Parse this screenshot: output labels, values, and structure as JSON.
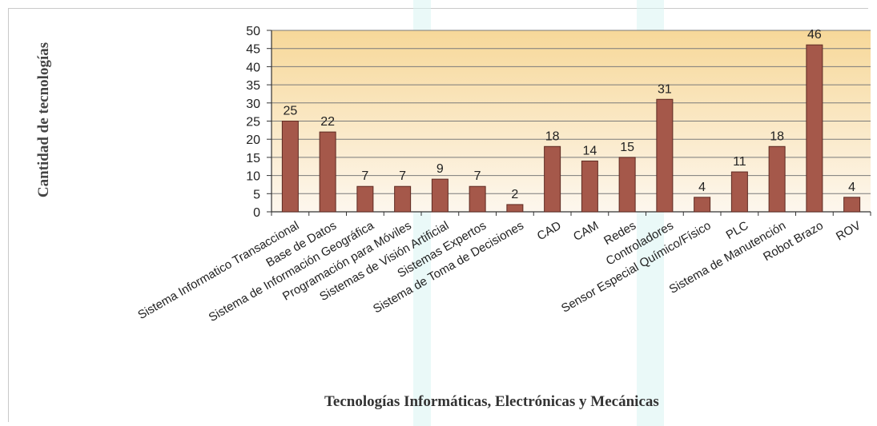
{
  "chart_data": {
    "type": "bar",
    "title": "",
    "ylabel": "Cantidad de tecnologías",
    "xlabel": "Tecnologías Informáticas, Electrónicas y Mecánicas",
    "ylim": [
      0,
      50
    ],
    "yticks": [
      0,
      5,
      10,
      15,
      20,
      25,
      30,
      35,
      40,
      45,
      50
    ],
    "grid": true,
    "legend": "none",
    "categories": [
      "Sistema Informatico Transaccional",
      "Base de Datos",
      "Sistema de Información Geográfica",
      "Programación para Móviles",
      "Sistemas de Visión Artificial",
      "Sistemas Expertos",
      "Sistema de Toma de Decisiones",
      "CAD",
      "CAM",
      "Redes",
      "Controladores",
      "Sensor Especial Químico/Físico",
      "PLC",
      "Sistema de Manutención",
      "Robot Brazo",
      "ROV"
    ],
    "values": [
      25,
      22,
      7,
      7,
      9,
      7,
      2,
      18,
      14,
      15,
      31,
      4,
      11,
      18,
      46,
      4
    ],
    "data_labels": [
      "25",
      "22",
      "7",
      "7",
      "9",
      "7",
      "2",
      "18",
      "14",
      "15",
      "31",
      "4",
      "11",
      "18",
      "46",
      "4"
    ],
    "colors": {
      "bar": "#a5584a",
      "bar_edge": "#5e2a22",
      "plot_top": "#f7d899",
      "plot_bottom": "#fdf7ee",
      "grid": "#7a7a7a"
    }
  }
}
